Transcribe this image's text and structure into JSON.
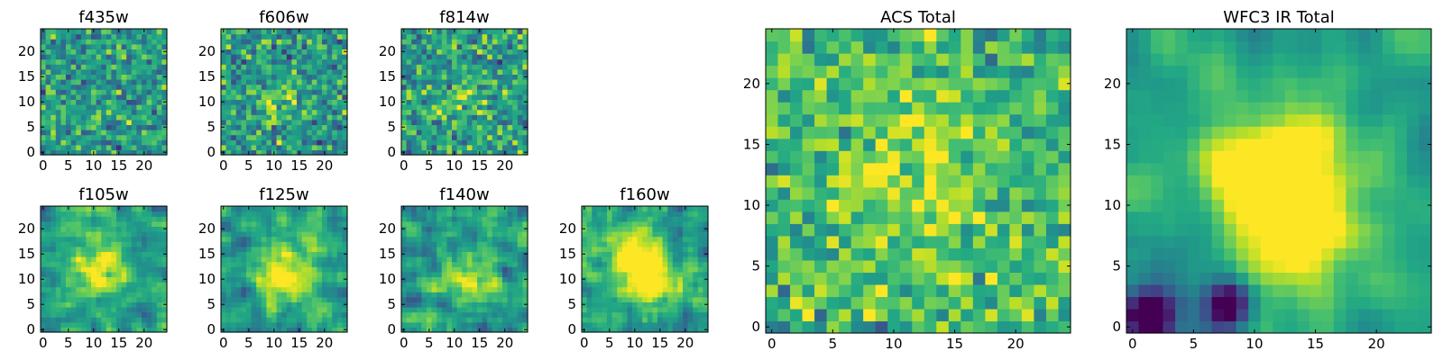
{
  "chart_data": {
    "type": "heatmap",
    "colormap": "viridis",
    "grid_size": 25,
    "panels": [
      {
        "name": "f435w",
        "title": "f435w",
        "xticks": [
          "0",
          "5",
          "10",
          "15",
          "20"
        ],
        "yticks": [
          "0",
          "5",
          "10",
          "15",
          "20"
        ],
        "xlim": [
          0,
          24
        ],
        "ylim": [
          0,
          24
        ],
        "seed": 11,
        "smooth": 0,
        "blobs": [],
        "noise": 0.85
      },
      {
        "name": "f606w",
        "title": "f606w",
        "xticks": [
          "0",
          "5",
          "10",
          "15",
          "20"
        ],
        "yticks": [
          "0",
          "5",
          "10",
          "15",
          "20"
        ],
        "xlim": [
          0,
          24
        ],
        "ylim": [
          0,
          24
        ],
        "seed": 23,
        "smooth": 0,
        "blobs": [
          {
            "x": 11,
            "y": 10,
            "amp": 0.2,
            "sigma": 3
          }
        ],
        "noise": 0.85
      },
      {
        "name": "f814w",
        "title": "f814w",
        "xticks": [
          "0",
          "5",
          "10",
          "15",
          "20"
        ],
        "yticks": [
          "0",
          "5",
          "10",
          "15",
          "20"
        ],
        "xlim": [
          0,
          24
        ],
        "ylim": [
          0,
          24
        ],
        "seed": 37,
        "smooth": 0,
        "blobs": [
          {
            "x": 12,
            "y": 11,
            "amp": 0.15,
            "sigma": 3
          }
        ],
        "noise": 0.85
      },
      {
        "name": "f105w",
        "title": "f105w",
        "xticks": [
          "0",
          "5",
          "10",
          "15",
          "20"
        ],
        "yticks": [
          "0",
          "5",
          "10",
          "15",
          "20"
        ],
        "xlim": [
          0,
          24
        ],
        "ylim": [
          0,
          24
        ],
        "seed": 41,
        "smooth": 1,
        "blobs": [
          {
            "x": 11,
            "y": 12,
            "amp": 0.5,
            "sigma": 3
          }
        ],
        "noise": 0.6
      },
      {
        "name": "f125w",
        "title": "f125w",
        "xticks": [
          "0",
          "5",
          "10",
          "15",
          "20"
        ],
        "yticks": [
          "0",
          "5",
          "10",
          "15",
          "20"
        ],
        "xlim": [
          0,
          24
        ],
        "ylim": [
          0,
          24
        ],
        "seed": 53,
        "smooth": 1,
        "blobs": [
          {
            "x": 12,
            "y": 11,
            "amp": 0.55,
            "sigma": 3.5
          }
        ],
        "noise": 0.6
      },
      {
        "name": "f140w",
        "title": "f140w",
        "xticks": [
          "0",
          "5",
          "10",
          "15",
          "20"
        ],
        "yticks": [
          "0",
          "5",
          "10",
          "15",
          "20"
        ],
        "xlim": [
          0,
          24
        ],
        "ylim": [
          0,
          24
        ],
        "seed": 67,
        "smooth": 1,
        "blobs": [
          {
            "x": 12,
            "y": 11,
            "amp": 0.35,
            "sigma": 3.5
          }
        ],
        "noise": 0.65
      },
      {
        "name": "f160w",
        "title": "f160w",
        "xticks": [
          "0",
          "5",
          "10",
          "15",
          "20"
        ],
        "yticks": [
          "0",
          "5",
          "10",
          "15",
          "20"
        ],
        "xlim": [
          0,
          24
        ],
        "ylim": [
          0,
          24
        ],
        "seed": 79,
        "smooth": 1,
        "blobs": [
          {
            "x": 10,
            "y": 14,
            "amp": 0.55,
            "sigma": 3.5
          },
          {
            "x": 14,
            "y": 9,
            "amp": 0.45,
            "sigma": 3
          }
        ],
        "noise": 0.55
      },
      {
        "name": "acs-total",
        "title": "ACS Total",
        "xticks": [
          "0",
          "5",
          "10",
          "15",
          "20"
        ],
        "yticks": [
          "0",
          "5",
          "10",
          "15",
          "20"
        ],
        "xlim": [
          0,
          24
        ],
        "ylim": [
          0,
          24
        ],
        "seed": 97,
        "smooth": 0,
        "blobs": [
          {
            "x": 12,
            "y": 12,
            "amp": 0.2,
            "sigma": 4
          }
        ],
        "noise": 0.8,
        "bias": 0.12
      },
      {
        "name": "wfc3-ir-total",
        "title": "WFC3 IR Total",
        "xticks": [
          "0",
          "5",
          "10",
          "15",
          "20"
        ],
        "yticks": [
          "0",
          "5",
          "10",
          "15",
          "20"
        ],
        "xlim": [
          0,
          24
        ],
        "ylim": [
          0,
          24
        ],
        "seed": 113,
        "smooth": 2,
        "blobs": [
          {
            "x": 12,
            "y": 13,
            "amp": 0.75,
            "sigma": 3.5
          },
          {
            "x": 14,
            "y": 8,
            "amp": 0.55,
            "sigma": 3
          },
          {
            "x": 1,
            "y": 1,
            "amp": -0.9,
            "sigma": 1.6
          },
          {
            "x": 8,
            "y": 2,
            "amp": -0.6,
            "sigma": 1.3
          }
        ],
        "noise": 0.4
      }
    ]
  }
}
